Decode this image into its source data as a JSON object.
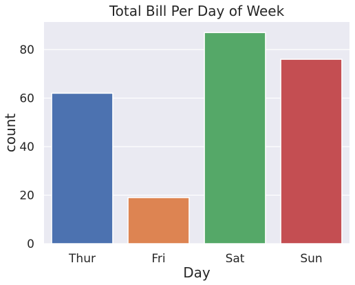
{
  "chart_data": {
    "type": "bar",
    "title": "Total Bill Per Day of Week",
    "xlabel": "Day",
    "ylabel": "count",
    "categories": [
      "Thur",
      "Fri",
      "Sat",
      "Sun"
    ],
    "values": [
      62,
      19,
      87,
      76
    ],
    "colors": [
      "#4c72b0",
      "#dd8452",
      "#55a868",
      "#c44e52"
    ],
    "ylim": [
      0,
      91.35
    ],
    "yticks": [
      0,
      20,
      40,
      60,
      80
    ],
    "ytick_labels": [
      "0",
      "20",
      "40",
      "60",
      "80"
    ],
    "grid": true,
    "background": "#eaeaf2",
    "grid_color": "#ffffff"
  }
}
